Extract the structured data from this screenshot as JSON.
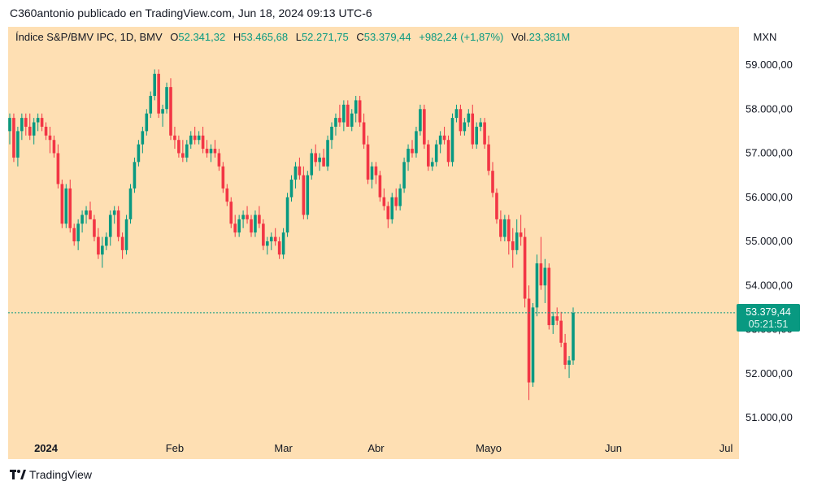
{
  "attribution": "C360antonio publicado en TradingView.com, Jun 18, 2024 09:13 UTC-6",
  "legend": {
    "symbol": "Índice S&P/BMV IPC, 1D, BMV",
    "open_label": "O",
    "open": "52.341,32",
    "high_label": "H",
    "high": "53.465,68",
    "low_label": "L",
    "low": "52.271,75",
    "close_label": "C",
    "close": "53.379,44",
    "change": "+982,24 (+1,87%)",
    "vol_label": "Vol.",
    "vol": "23,381M"
  },
  "currency": "MXN",
  "price_label": {
    "value": "53.379,44",
    "countdown": "05:21:51"
  },
  "footer": {
    "brand": "TradingView"
  },
  "colors": {
    "up": "#089981",
    "down": "#f23645",
    "background": "#fedfb3",
    "grid_text": "#131722"
  },
  "chart_data": {
    "type": "candlestick",
    "title": "Índice S&P/BMV IPC, 1D, BMV",
    "ylim": [
      50500,
      59500
    ],
    "y_ticks": [
      51000,
      52000,
      53000,
      54000,
      55000,
      56000,
      57000,
      58000,
      59000
    ],
    "y_tick_labels": [
      "51.000,00",
      "52.000,00",
      "53.000,00",
      "54.000,00",
      "55.000,00",
      "56.000,00",
      "57.000,00",
      "58.000,00",
      "59.000,00"
    ],
    "x_ticks": [
      {
        "label": "2024",
        "index": 9,
        "bold": true
      },
      {
        "label": "Feb",
        "index": 41
      },
      {
        "label": "Mar",
        "index": 68
      },
      {
        "label": "Abr",
        "index": 91
      },
      {
        "label": "Mayo",
        "index": 119
      },
      {
        "label": "Jun",
        "index": 150
      },
      {
        "label": "Jul",
        "index": 178
      }
    ],
    "last_close": 53379.44,
    "ohlc": [
      [
        57500,
        57900,
        57200,
        57800
      ],
      [
        57800,
        57900,
        56800,
        56900
      ],
      [
        56900,
        57600,
        56700,
        57500
      ],
      [
        57500,
        57900,
        57300,
        57800
      ],
      [
        57800,
        57900,
        57400,
        57600
      ],
      [
        57600,
        57900,
        57300,
        57400
      ],
      [
        57400,
        57800,
        57200,
        57700
      ],
      [
        57700,
        57900,
        57500,
        57800
      ],
      [
        57800,
        57900,
        57500,
        57600
      ],
      [
        57600,
        57700,
        57300,
        57400
      ],
      [
        57400,
        57600,
        57000,
        57300
      ],
      [
        57300,
        57400,
        56900,
        57000
      ],
      [
        57000,
        57200,
        56200,
        56300
      ],
      [
        56300,
        56400,
        55300,
        55400
      ],
      [
        55400,
        56300,
        55300,
        56200
      ],
      [
        56200,
        56400,
        55200,
        55300
      ],
      [
        55300,
        55400,
        54900,
        55000
      ],
      [
        55000,
        55500,
        54800,
        55400
      ],
      [
        55400,
        55700,
        55200,
        55600
      ],
      [
        55600,
        55800,
        55400,
        55700
      ],
      [
        55700,
        55900,
        55500,
        55500
      ],
      [
        55500,
        55600,
        55000,
        55100
      ],
      [
        55100,
        55300,
        54600,
        54700
      ],
      [
        54700,
        55100,
        54400,
        54900
      ],
      [
        54900,
        55200,
        54800,
        55100
      ],
      [
        55100,
        55700,
        54900,
        55600
      ],
      [
        55600,
        55800,
        55400,
        55700
      ],
      [
        55700,
        55800,
        55000,
        55100
      ],
      [
        55100,
        55200,
        54600,
        54800
      ],
      [
        54800,
        55600,
        54700,
        55500
      ],
      [
        55500,
        56300,
        55400,
        56200
      ],
      [
        56200,
        56900,
        56100,
        56800
      ],
      [
        56800,
        57300,
        56700,
        57200
      ],
      [
        57200,
        57600,
        57000,
        57500
      ],
      [
        57500,
        58000,
        57400,
        57900
      ],
      [
        57900,
        58400,
        57800,
        58300
      ],
      [
        58300,
        58900,
        58200,
        58800
      ],
      [
        58800,
        58900,
        57800,
        57900
      ],
      [
        57900,
        58100,
        57600,
        58000
      ],
      [
        58000,
        58600,
        57900,
        58500
      ],
      [
        58500,
        58700,
        57300,
        57400
      ],
      [
        57400,
        57600,
        57100,
        57300
      ],
      [
        57300,
        57400,
        56900,
        57000
      ],
      [
        57000,
        57300,
        56800,
        56900
      ],
      [
        56900,
        57300,
        56800,
        57200
      ],
      [
        57200,
        57500,
        57100,
        57400
      ],
      [
        57400,
        57600,
        57200,
        57300
      ],
      [
        57300,
        57500,
        57200,
        57400
      ],
      [
        57400,
        57600,
        57000,
        57100
      ],
      [
        57100,
        57300,
        56900,
        57000
      ],
      [
        57000,
        57200,
        56800,
        57100
      ],
      [
        57100,
        57300,
        56900,
        57000
      ],
      [
        57000,
        57100,
        56600,
        56700
      ],
      [
        56700,
        56800,
        56100,
        56200
      ],
      [
        56200,
        56300,
        55800,
        55900
      ],
      [
        55900,
        56000,
        55300,
        55400
      ],
      [
        55400,
        55600,
        55100,
        55200
      ],
      [
        55200,
        55600,
        55100,
        55500
      ],
      [
        55500,
        55700,
        55300,
        55600
      ],
      [
        55600,
        55800,
        55400,
        55500
      ],
      [
        55500,
        55600,
        55100,
        55200
      ],
      [
        55200,
        55700,
        55100,
        55600
      ],
      [
        55600,
        55800,
        55300,
        55400
      ],
      [
        55400,
        55500,
        54800,
        54900
      ],
      [
        54900,
        55100,
        54700,
        55000
      ],
      [
        55000,
        55200,
        54800,
        55100
      ],
      [
        55100,
        55300,
        54900,
        55000
      ],
      [
        55000,
        55100,
        54600,
        54700
      ],
      [
        54700,
        55300,
        54600,
        55200
      ],
      [
        55200,
        56100,
        55100,
        56000
      ],
      [
        56000,
        56500,
        55900,
        56400
      ],
      [
        56400,
        56800,
        56200,
        56700
      ],
      [
        56700,
        56900,
        56400,
        56500
      ],
      [
        56500,
        56700,
        55500,
        55600
      ],
      [
        55600,
        56600,
        55500,
        56500
      ],
      [
        56500,
        57100,
        56400,
        57000
      ],
      [
        57000,
        57200,
        56700,
        56800
      ],
      [
        56800,
        57000,
        56600,
        56900
      ],
      [
        56900,
        57100,
        56700,
        56700
      ],
      [
        56700,
        57400,
        56600,
        57300
      ],
      [
        57300,
        57700,
        57100,
        57600
      ],
      [
        57600,
        57900,
        57400,
        57800
      ],
      [
        57800,
        58100,
        57600,
        57700
      ],
      [
        57700,
        58200,
        57500,
        58100
      ],
      [
        58100,
        58200,
        57600,
        57600
      ],
      [
        57600,
        58000,
        57500,
        57900
      ],
      [
        57900,
        58300,
        57700,
        58200
      ],
      [
        58200,
        58300,
        57600,
        57700
      ],
      [
        57700,
        57900,
        57100,
        57200
      ],
      [
        57200,
        57400,
        56300,
        56400
      ],
      [
        56400,
        56800,
        56200,
        56700
      ],
      [
        56700,
        56800,
        56300,
        56500
      ],
      [
        56500,
        56600,
        55900,
        56000
      ],
      [
        56000,
        56200,
        55700,
        55800
      ],
      [
        55800,
        55900,
        55300,
        55500
      ],
      [
        55500,
        56100,
        55400,
        56000
      ],
      [
        56000,
        56200,
        55700,
        55800
      ],
      [
        55800,
        56300,
        55700,
        56200
      ],
      [
        56200,
        56900,
        56100,
        56800
      ],
      [
        56800,
        57200,
        56600,
        57100
      ],
      [
        57100,
        57300,
        56900,
        57000
      ],
      [
        57000,
        57600,
        56900,
        57500
      ],
      [
        57500,
        58100,
        57400,
        58000
      ],
      [
        58000,
        58100,
        57100,
        57200
      ],
      [
        57200,
        57300,
        56600,
        56700
      ],
      [
        56700,
        56900,
        56600,
        56800
      ],
      [
        56800,
        57300,
        56700,
        57200
      ],
      [
        57200,
        57500,
        57000,
        57400
      ],
      [
        57400,
        57600,
        57200,
        57300
      ],
      [
        57300,
        57400,
        56700,
        56800
      ],
      [
        56800,
        57900,
        56700,
        57800
      ],
      [
        57800,
        58100,
        57700,
        58000
      ],
      [
        58000,
        58100,
        57400,
        57500
      ],
      [
        57500,
        57800,
        57400,
        57700
      ],
      [
        57700,
        58000,
        57600,
        57900
      ],
      [
        57900,
        58100,
        57100,
        57200
      ],
      [
        57200,
        57700,
        57100,
        57600
      ],
      [
        57600,
        57800,
        57500,
        57700
      ],
      [
        57700,
        57800,
        57100,
        57200
      ],
      [
        57200,
        57400,
        56500,
        56600
      ],
      [
        56600,
        56800,
        56000,
        56100
      ],
      [
        56100,
        56200,
        55400,
        55500
      ],
      [
        55500,
        55700,
        55000,
        55100
      ],
      [
        55100,
        55600,
        55000,
        55500
      ],
      [
        55500,
        55600,
        54700,
        55000
      ],
      [
        55000,
        55300,
        54400,
        54800
      ],
      [
        54800,
        55500,
        54700,
        55200
      ],
      [
        55200,
        55600,
        54900,
        55100
      ],
      [
        55100,
        55300,
        53500,
        53700
      ],
      [
        53700,
        54000,
        51400,
        51800
      ],
      [
        51800,
        53600,
        51700,
        53500
      ],
      [
        53500,
        54700,
        53300,
        54500
      ],
      [
        54500,
        55100,
        53900,
        54000
      ],
      [
        54000,
        54600,
        53600,
        54400
      ],
      [
        54400,
        54500,
        53000,
        53100
      ],
      [
        53100,
        53400,
        52900,
        53300
      ],
      [
        53300,
        53500,
        53100,
        53200
      ],
      [
        53200,
        53400,
        52600,
        52700
      ],
      [
        52700,
        52900,
        52100,
        52200
      ],
      [
        52200,
        52400,
        51900,
        52300
      ],
      [
        52300,
        53500,
        52200,
        53379
      ]
    ]
  }
}
